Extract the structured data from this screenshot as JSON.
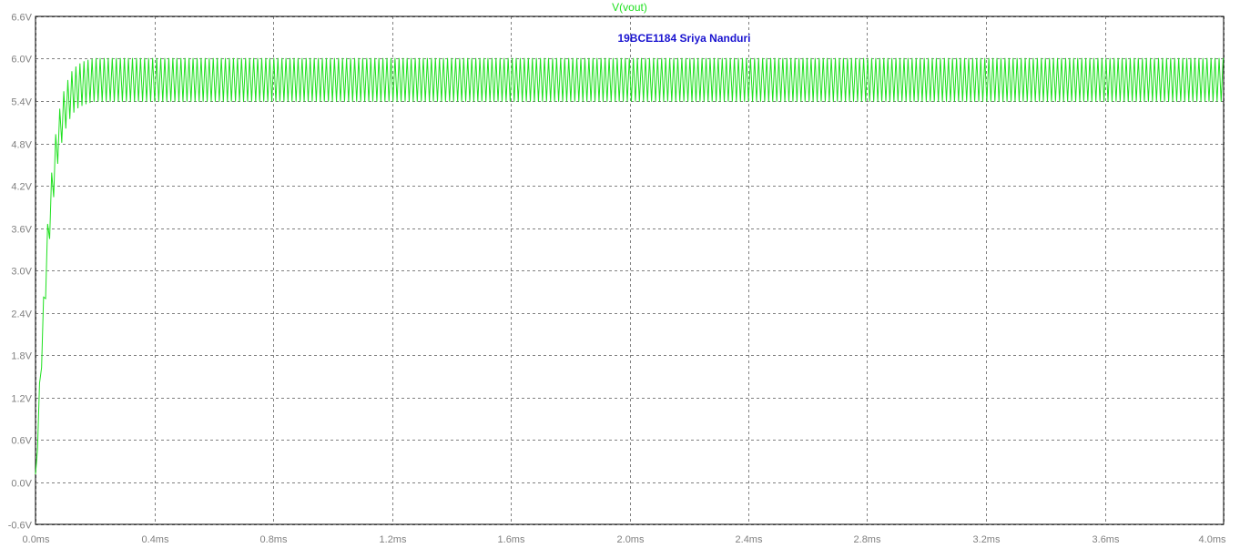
{
  "chart_data": {
    "type": "line",
    "title": "V(vout)",
    "annotation": "19BCE1184 Sriya Nanduri",
    "xlabel": "",
    "ylabel": "",
    "xlim": [
      0,
      4
    ],
    "ylim": [
      -0.6,
      6.6
    ],
    "x_ticks": [
      0,
      0.4,
      0.8,
      1.2,
      1.6,
      2.0,
      2.4,
      2.8,
      3.2,
      3.6,
      4.0
    ],
    "x_tick_labels": [
      "0.0ms",
      "0.4ms",
      "0.8ms",
      "1.2ms",
      "1.6ms",
      "2.0ms",
      "2.4ms",
      "2.8ms",
      "3.2ms",
      "3.6ms",
      "4.0ms"
    ],
    "y_ticks": [
      -0.6,
      0.0,
      0.6,
      1.2,
      1.8,
      2.4,
      3.0,
      3.6,
      4.2,
      4.8,
      5.4,
      6.0,
      6.6
    ],
    "y_tick_labels": [
      "-0.6V",
      "0.0V",
      "0.6V",
      "1.2V",
      "1.8V",
      "2.4V",
      "3.0V",
      "3.6V",
      "4.2V",
      "4.8V",
      "5.4V",
      "6.0V",
      "6.6V"
    ],
    "grid": true,
    "series": [
      {
        "name": "V(vout)",
        "color": "#1fe01f",
        "x": [
          0,
          0.01,
          0.02,
          0.03,
          0.04,
          0.05,
          0.06,
          0.07,
          0.08,
          0.09,
          0.1,
          0.12,
          0.14,
          0.16,
          0.18,
          0.2,
          0.25,
          0.3,
          4.0
        ],
        "values": [
          0.0,
          0.9,
          1.8,
          2.6,
          3.3,
          3.9,
          4.3,
          4.7,
          4.95,
          5.15,
          5.3,
          5.5,
          5.6,
          5.65,
          5.68,
          5.7,
          5.7,
          5.7,
          5.7
        ],
        "ripple_peak_to_peak": 0.62,
        "steady_state_min": 5.38,
        "steady_state_max": 6.0
      }
    ]
  }
}
